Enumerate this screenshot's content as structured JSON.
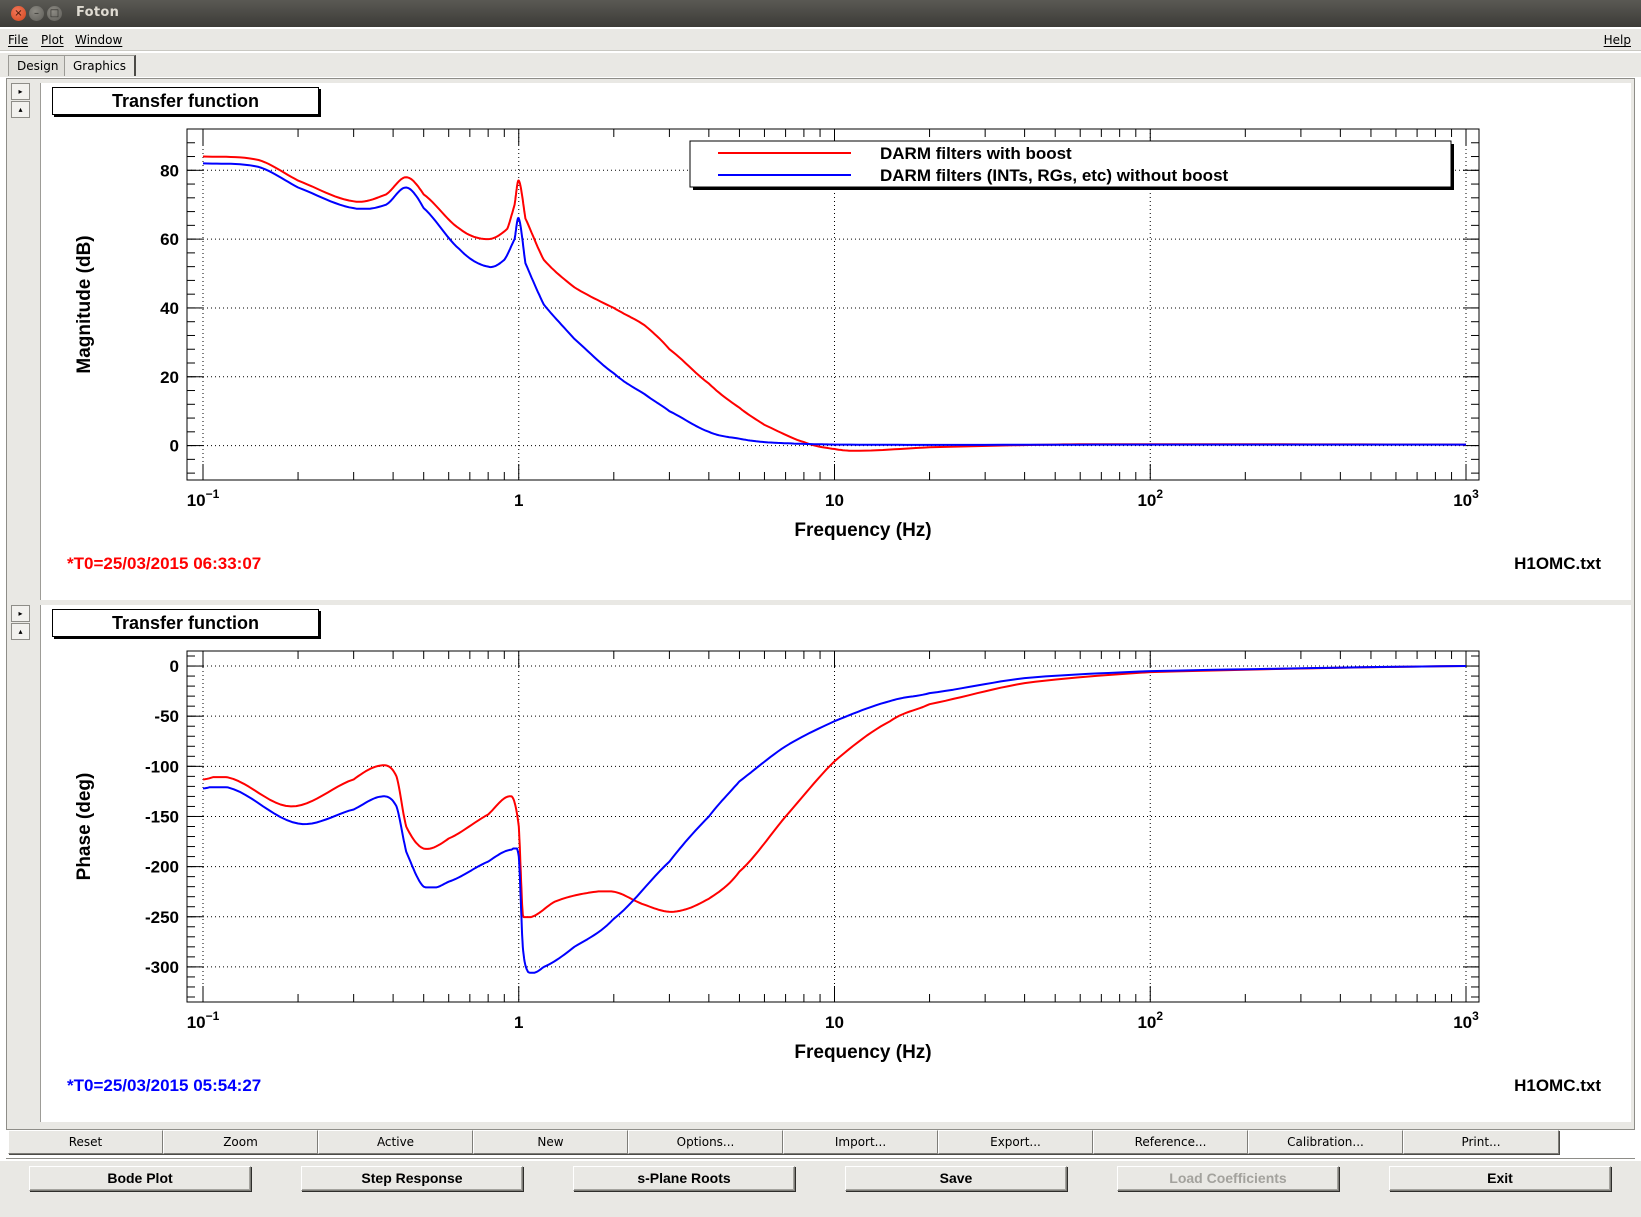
{
  "window": {
    "title": "Foton"
  },
  "menu": {
    "items": [
      "File",
      "Plot",
      "Window"
    ],
    "help": "Help"
  },
  "tabs": [
    {
      "label": "Design"
    },
    {
      "label": "Graphics",
      "active": true
    }
  ],
  "pads": [
    {
      "title": "Transfer function",
      "timestamp": "*T0=25/03/2015 06:33:07",
      "timestamp_color": "#ff0000",
      "filename": "H1OMC.txt"
    },
    {
      "title": "Transfer function",
      "timestamp": "*T0=25/03/2015 05:54:27",
      "timestamp_color": "#0000ff",
      "filename": "H1OMC.txt"
    }
  ],
  "toolbar": [
    "Reset",
    "Zoom",
    "Active",
    "New",
    "Options...",
    "Import...",
    "Export...",
    "Reference...",
    "Calibration...",
    "Print..."
  ],
  "bottom_buttons": [
    {
      "label": "Bode Plot"
    },
    {
      "label": "Step Response"
    },
    {
      "label": "s-Plane Roots"
    },
    {
      "label": "Save"
    },
    {
      "label": "Load Coefficients",
      "disabled": true
    },
    {
      "label": "Exit"
    }
  ],
  "chart_data": [
    {
      "type": "line",
      "xscale": "log",
      "xlim": [
        0.1,
        1000
      ],
      "ylim": [
        -10,
        92
      ],
      "xticks": [
        0.1,
        1,
        10,
        100,
        1000
      ],
      "xlabel": "Frequency (Hz)",
      "ylabel": "Magnitude (dB)",
      "yticks": [
        0,
        20,
        40,
        60,
        80
      ],
      "grid": true,
      "legend": {
        "position": "top-right",
        "entries": [
          "DARM filters with boost",
          "DARM filters (INTs, RGs, etc) without boost"
        ]
      },
      "series": [
        {
          "name": "DARM filters with boost",
          "color": "#ff0000",
          "x": [
            0.1,
            0.15,
            0.2,
            0.3,
            0.38,
            0.44,
            0.5,
            0.65,
            0.8,
            0.92,
            0.97,
            1.0,
            1.05,
            1.2,
            1.5,
            2.0,
            2.5,
            3.0,
            4.0,
            5.0,
            6.0,
            8.0,
            10,
            12,
            20,
            50,
            100,
            1000
          ],
          "y": [
            84,
            83,
            77,
            71,
            73,
            78,
            73,
            63,
            60,
            63,
            70,
            77,
            66,
            54,
            46,
            40,
            35,
            28,
            18,
            11,
            6,
            1,
            -1,
            -1.5,
            -0.5,
            0.3,
            0.4,
            0.3
          ]
        },
        {
          "name": "DARM filters (INTs, RGs, etc) without boost",
          "color": "#0000ff",
          "x": [
            0.1,
            0.15,
            0.2,
            0.3,
            0.38,
            0.44,
            0.5,
            0.65,
            0.8,
            0.9,
            0.97,
            1.0,
            1.05,
            1.2,
            1.5,
            2.0,
            2.5,
            3.0,
            4.0,
            5.0,
            6.0,
            8.0,
            10,
            20,
            100,
            1000
          ],
          "y": [
            82,
            81,
            75,
            69,
            70,
            75,
            69,
            57,
            52,
            54,
            60,
            66,
            53,
            41,
            31,
            21,
            15,
            10,
            4,
            2,
            1,
            0.5,
            0.3,
            0.2,
            0.3,
            0.3
          ]
        }
      ]
    },
    {
      "type": "line",
      "xscale": "log",
      "xlim": [
        0.1,
        1000
      ],
      "ylim": [
        -335,
        15
      ],
      "xticks": [
        0.1,
        1,
        10,
        100,
        1000
      ],
      "xlabel": "Frequency (Hz)",
      "ylabel": "Phase (deg)",
      "yticks": [
        0,
        -50,
        -100,
        -150,
        -200,
        -250,
        -300
      ],
      "grid": true,
      "series": [
        {
          "name": "DARM filters with boost",
          "color": "#ff0000",
          "x": [
            0.1,
            0.12,
            0.19,
            0.3,
            0.37,
            0.41,
            0.44,
            0.5,
            0.6,
            0.8,
            0.95,
            1.0,
            1.03,
            1.1,
            1.3,
            1.6,
            2.0,
            2.5,
            3.1,
            4.0,
            5.0,
            7.0,
            10,
            15,
            20,
            40,
            100,
            1000
          ],
          "y": [
            -113,
            -111,
            -140,
            -113,
            -99,
            -110,
            -160,
            -182,
            -172,
            -148,
            -130,
            -160,
            -248,
            -250,
            -235,
            -227,
            -225,
            -238,
            -245,
            -232,
            -205,
            -150,
            -95,
            -55,
            -38,
            -17,
            -6,
            0
          ]
        },
        {
          "name": "DARM filters (INTs, RGs, etc) without boost",
          "color": "#0000ff",
          "x": [
            0.1,
            0.12,
            0.2,
            0.3,
            0.37,
            0.41,
            0.44,
            0.5,
            0.6,
            0.8,
            0.95,
            1.0,
            1.03,
            1.07,
            1.2,
            1.5,
            2.0,
            3.0,
            4.0,
            5.0,
            7.0,
            10,
            15,
            20,
            40,
            100,
            1000
          ],
          "y": [
            -122,
            -121,
            -157,
            -143,
            -130,
            -140,
            -185,
            -220,
            -215,
            -195,
            -183,
            -190,
            -280,
            -305,
            -300,
            -280,
            -252,
            -195,
            -150,
            -115,
            -80,
            -55,
            -35,
            -27,
            -12,
            -5,
            0
          ]
        }
      ]
    }
  ]
}
